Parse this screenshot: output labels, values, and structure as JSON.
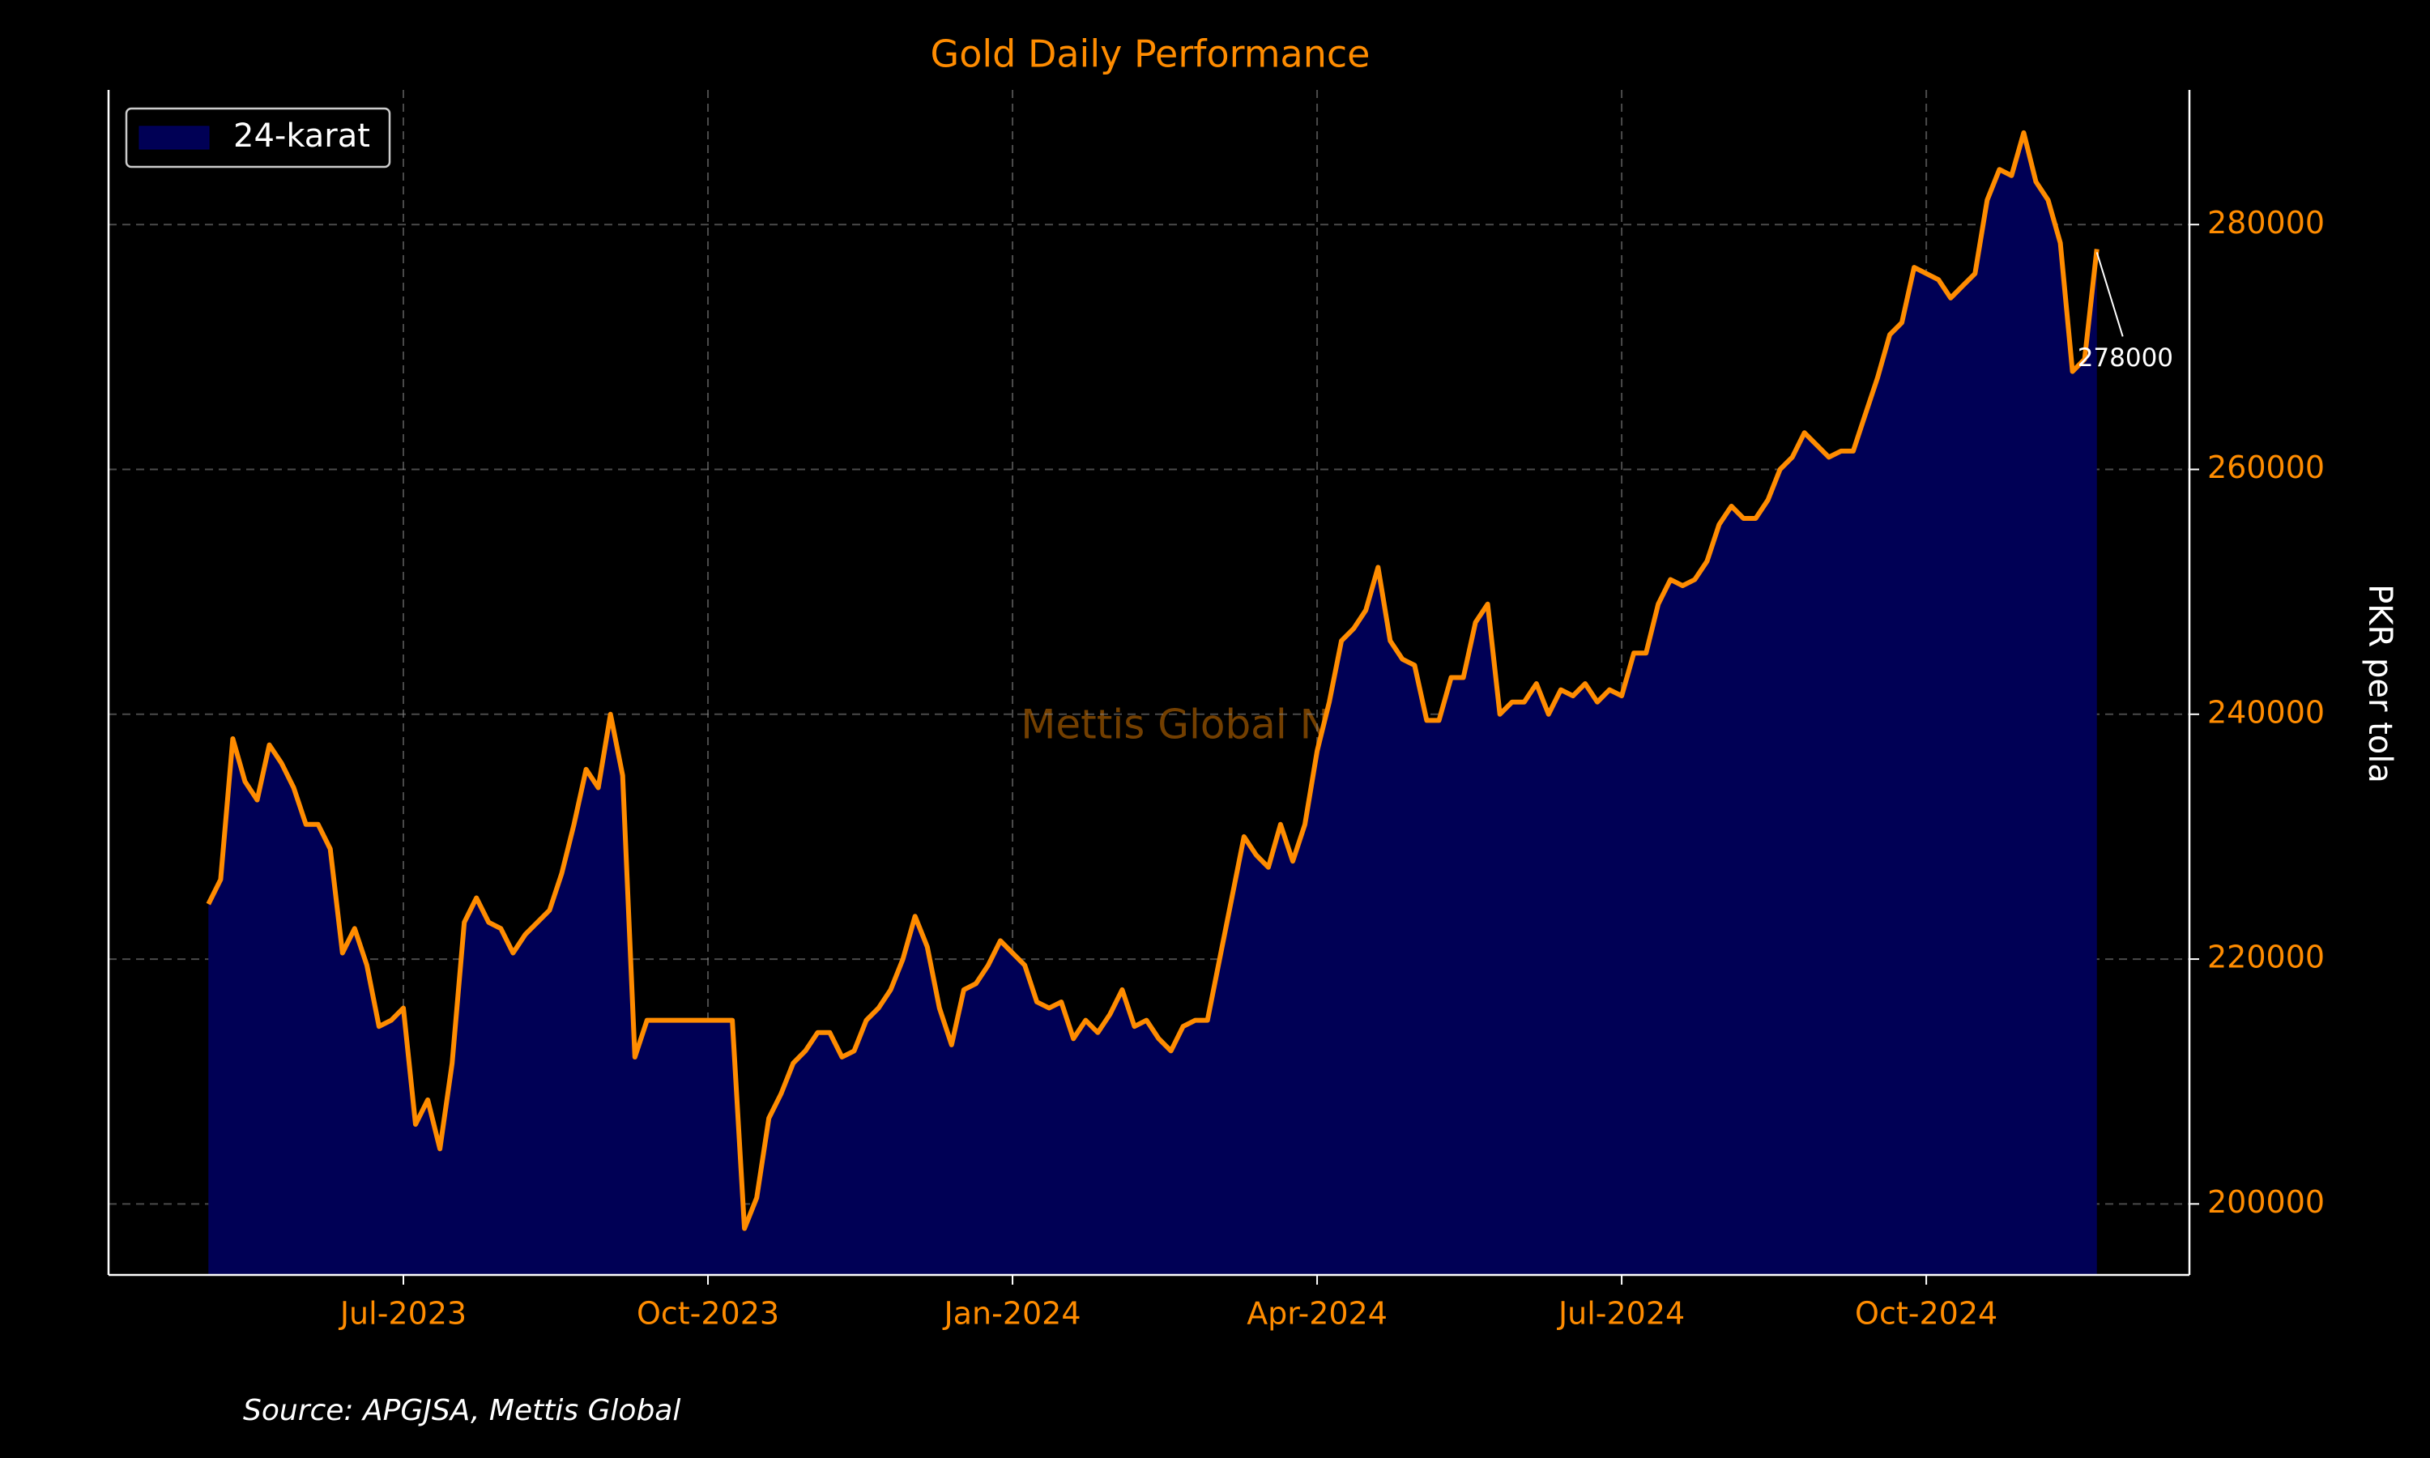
{
  "chart_data": {
    "type": "area",
    "title": "Gold Daily Performance",
    "ylabel": "PKR per tola",
    "source": "Source: APGJSA, Mettis Global",
    "watermark": "Mettis Global News",
    "legend": "upper left",
    "grid": true,
    "xlim": [
      2023.258,
      2024.966
    ],
    "xticks": [
      {
        "value": 2023.5,
        "label": "Jul-2023"
      },
      {
        "value": 2023.75,
        "label": "Oct-2023"
      },
      {
        "value": 2024.0,
        "label": "Jan-2024"
      },
      {
        "value": 2024.25,
        "label": "Apr-2024"
      },
      {
        "value": 2024.5,
        "label": "Jul-2024"
      },
      {
        "value": 2024.75,
        "label": "Oct-2024"
      }
    ],
    "ylim": [
      194200,
      291000
    ],
    "yticks": [
      200000,
      220000,
      240000,
      260000,
      280000
    ],
    "x": [
      2023.34,
      2023.35,
      2023.36,
      2023.37,
      2023.38,
      2023.39,
      2023.4,
      2023.41,
      2023.42,
      2023.43,
      2023.44,
      2023.45,
      2023.46,
      2023.47,
      2023.48,
      2023.49,
      2023.5,
      2023.51,
      2023.52,
      2023.53,
      2023.54,
      2023.55,
      2023.56,
      2023.57,
      2023.58,
      2023.59,
      2023.6,
      2023.61,
      2023.62,
      2023.63,
      2023.64,
      2023.65,
      2023.66,
      2023.67,
      2023.68,
      2023.69,
      2023.7,
      2023.71,
      2023.72,
      2023.73,
      2023.74,
      2023.75,
      2023.76,
      2023.77,
      2023.78,
      2023.79,
      2023.8,
      2023.81,
      2023.82,
      2023.83,
      2023.84,
      2023.85,
      2023.86,
      2023.87,
      2023.88,
      2023.89,
      2023.9,
      2023.91,
      2023.92,
      2023.93,
      2023.94,
      2023.95,
      2023.96,
      2023.97,
      2023.98,
      2023.99,
      2024.0,
      2024.01,
      2024.02,
      2024.03,
      2024.04,
      2024.05,
      2024.06,
      2024.07,
      2024.08,
      2024.09,
      2024.1,
      2024.11,
      2024.12,
      2024.13,
      2024.14,
      2024.15,
      2024.16,
      2024.17,
      2024.18,
      2024.19,
      2024.2,
      2024.21,
      2024.22,
      2024.23,
      2024.24,
      2024.25,
      2024.26,
      2024.27,
      2024.28,
      2024.29,
      2024.3,
      2024.31,
      2024.32,
      2024.33,
      2024.34,
      2024.35,
      2024.36,
      2024.37,
      2024.38,
      2024.39,
      2024.4,
      2024.41,
      2024.42,
      2024.43,
      2024.44,
      2024.45,
      2024.46,
      2024.47,
      2024.48,
      2024.49,
      2024.5,
      2024.51,
      2024.52,
      2024.53,
      2024.54,
      2024.55,
      2024.56,
      2024.57,
      2024.58,
      2024.59,
      2024.6,
      2024.61,
      2024.62,
      2024.63,
      2024.64,
      2024.65,
      2024.66,
      2024.67,
      2024.68,
      2024.69,
      2024.7,
      2024.71,
      2024.72,
      2024.73,
      2024.74,
      2024.75,
      2024.76,
      2024.77,
      2024.78,
      2024.79,
      2024.8,
      2024.81,
      2024.82,
      2024.83,
      2024.84,
      2024.85,
      2024.86,
      2024.87,
      2024.88,
      2024.89
    ],
    "series": [
      {
        "name": "24-karat",
        "color": "#ff8c00",
        "fill": "#000055",
        "values": [
          224500,
          226500,
          238000,
          234500,
          233000,
          237500,
          236000,
          234000,
          231000,
          231000,
          229000,
          220500,
          222500,
          219500,
          214500,
          215000,
          216000,
          206500,
          208500,
          204500,
          211500,
          223000,
          225000,
          223000,
          222500,
          220500,
          222000,
          223000,
          224000,
          227000,
          231000,
          235500,
          234000,
          240000,
          235000,
          212000,
          215000,
          215000,
          215000,
          215000,
          215000,
          215000,
          215000,
          215000,
          198000,
          200500,
          207000,
          209000,
          211500,
          212500,
          214000,
          214000,
          212000,
          212500,
          215000,
          216000,
          217500,
          220000,
          223500,
          221000,
          216000,
          213000,
          217500,
          218000,
          219500,
          221500,
          220500,
          219500,
          216500,
          216000,
          216500,
          213500,
          215000,
          214000,
          215500,
          217500,
          214500,
          215000,
          213500,
          212500,
          214500,
          215000,
          215000,
          220000,
          225000,
          230000,
          228500,
          227500,
          231000,
          228000,
          231000,
          237000,
          241000,
          246000,
          247000,
          248500,
          252000,
          246000,
          244500,
          244000,
          239500,
          239500,
          243000,
          243000,
          247500,
          249000,
          240000,
          241000,
          241000,
          242500,
          240000,
          242000,
          241500,
          242500,
          241000,
          242000,
          241500,
          245000,
          245000,
          249000,
          251000,
          250500,
          251000,
          252500,
          255500,
          257000,
          256000,
          256000,
          257500,
          260000,
          261000,
          263000,
          262000,
          261000,
          261500,
          261500,
          264500,
          267500,
          271000,
          272000,
          276500,
          276000,
          275500,
          274000,
          275000,
          276000,
          282000,
          284500,
          284000,
          287500,
          283500,
          282000,
          278500,
          268000,
          269000,
          278000
        ]
      }
    ]
  }
}
